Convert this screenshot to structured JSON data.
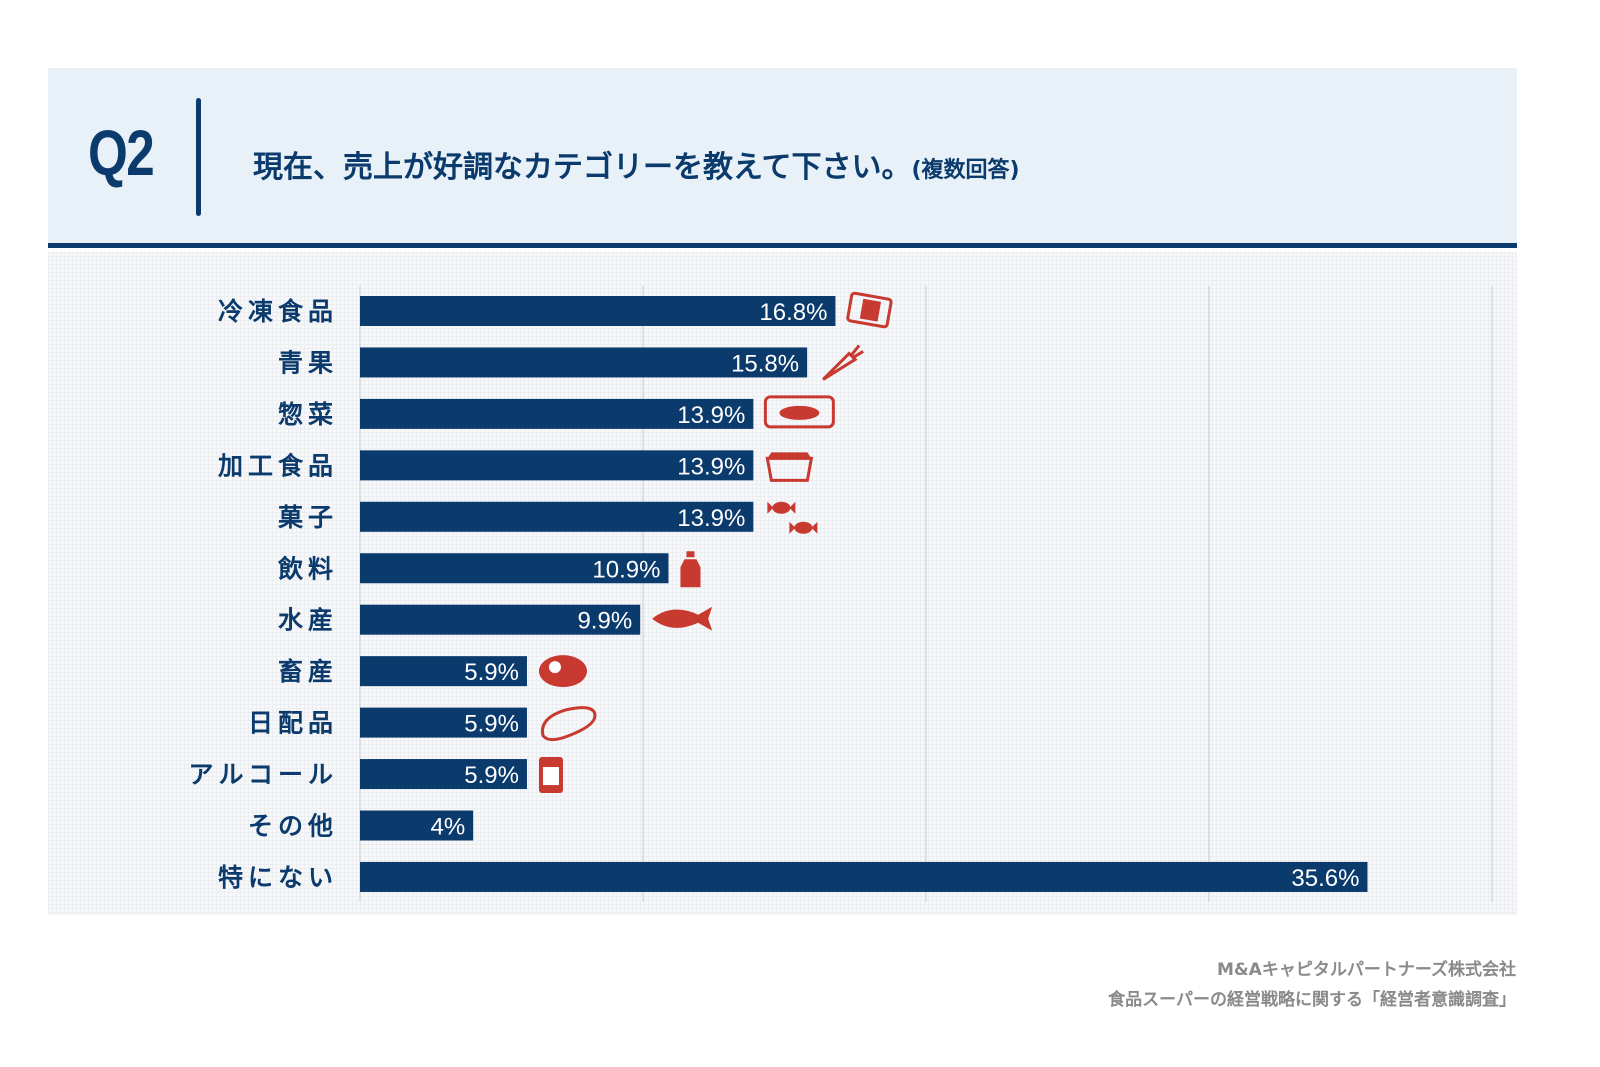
{
  "header": {
    "question_number": "Q2",
    "question_text": "現在、売上が好調なカテゴリーを教えて下さい。",
    "question_note": "(複数回答)"
  },
  "chart_data": {
    "type": "bar",
    "orientation": "horizontal",
    "categories": [
      "冷凍食品",
      "青果",
      "惣菜",
      "加工食品",
      "菓子",
      "飲料",
      "水産",
      "畜産",
      "日配品",
      "アルコール",
      "その他",
      "特にない"
    ],
    "values": [
      16.8,
      15.8,
      13.9,
      13.9,
      13.9,
      10.9,
      9.9,
      5.9,
      5.9,
      5.9,
      4,
      35.6
    ],
    "data_labels": [
      "16.8%",
      "15.8%",
      "13.9%",
      "13.9%",
      "13.9%",
      "10.9%",
      "9.9%",
      "5.9%",
      "5.9%",
      "5.9%",
      "4%",
      "35.6%"
    ],
    "icons": [
      "frozen-food-bag-icon",
      "carrot-icon",
      "sushi-icon",
      "food-container-icon",
      "candy-icon",
      "bottle-icon",
      "fish-icon",
      "steak-icon",
      "bread-icon",
      "beer-can-icon",
      null,
      null
    ],
    "unit": "%",
    "xlim": [
      0,
      40
    ],
    "grid": true,
    "bar_color": "#0b3a6c",
    "icon_color": "#c8392f"
  },
  "source": {
    "company": "M&Aキャピタルパートナーズ株式会社",
    "survey": "食品スーパーの経営戦略に関する「経営者意識調査」"
  }
}
